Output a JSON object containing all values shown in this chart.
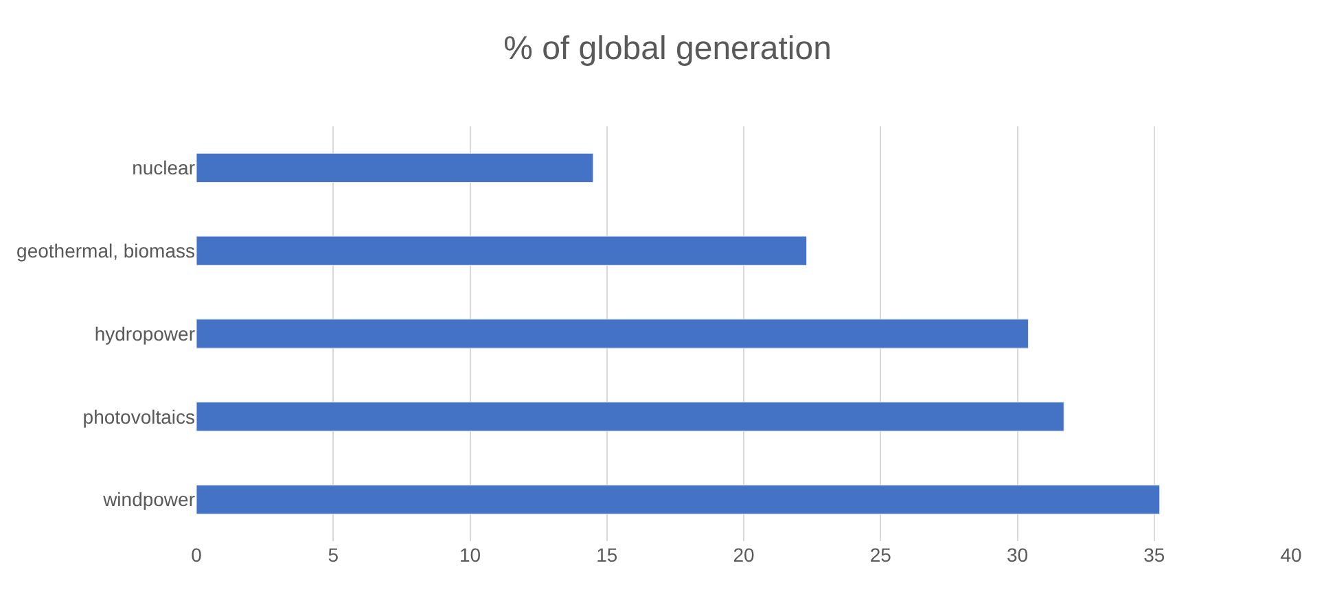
{
  "chart_data": {
    "type": "bar",
    "orientation": "horizontal",
    "title": "% of global generation",
    "categories": [
      "nuclear",
      "geothermal, biomass",
      "hydropower",
      "photovoltaics",
      "windpower"
    ],
    "values": [
      14.5,
      22.3,
      30.4,
      31.7,
      35.2
    ],
    "color": "#4472c4",
    "xlim": [
      0,
      40
    ],
    "xticks": [
      0,
      5,
      10,
      15,
      20,
      25,
      30,
      35,
      40
    ],
    "grid": "x",
    "legend": false
  }
}
